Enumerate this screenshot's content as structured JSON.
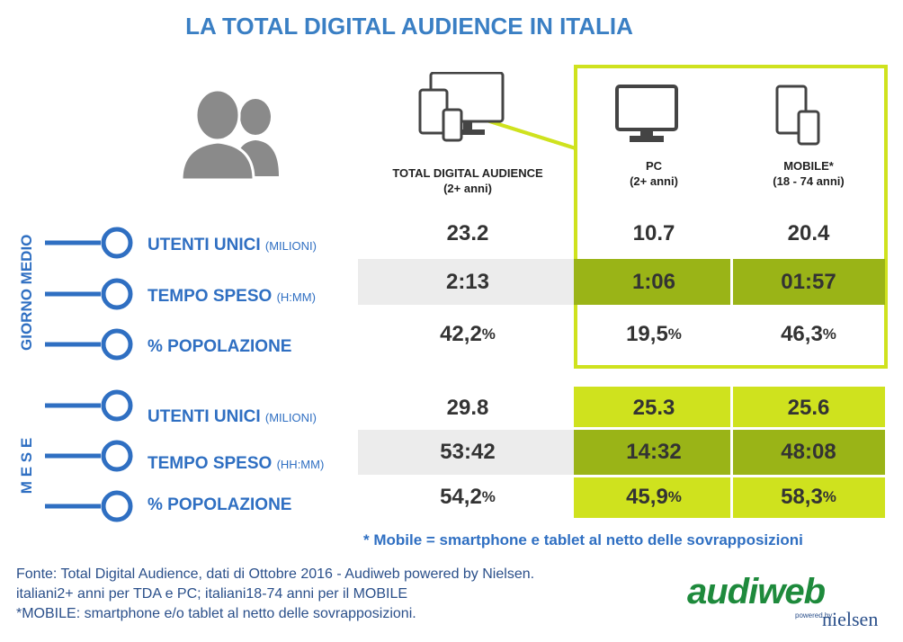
{
  "title": "LA TOTAL DIGITAL AUDIENCE IN ITALIA",
  "columns": [
    {
      "label": "TOTAL DIGITAL AUDIENCE",
      "sub": "(2+ anni)",
      "icon": "devices-icon"
    },
    {
      "label": "PC",
      "sub": "(2+ anni)",
      "icon": "monitor-icon"
    },
    {
      "label": "MOBILE*",
      "sub": "(18 - 74 anni)",
      "icon": "mobile-devices-icon"
    }
  ],
  "sections": [
    {
      "name": "GIORNO MEDIO",
      "rows": [
        {
          "label": "UTENTI UNICI",
          "sub": "(MILIONI)",
          "values": [
            "23.2",
            "10.7",
            "20.4"
          ],
          "pct": false
        },
        {
          "label": "TEMPO SPESO",
          "sub": "(H:MM)",
          "values": [
            "2:13",
            "1:06",
            "01:57"
          ],
          "pct": false
        },
        {
          "label": "% POPOLAZIONE",
          "sub": "",
          "values": [
            "42,2",
            "19,5",
            "46,3"
          ],
          "pct": true
        }
      ]
    },
    {
      "name": "M E S E",
      "rows": [
        {
          "label": "UTENTI UNICI",
          "sub": "(MILIONI)",
          "values": [
            "29.8",
            "25.3",
            "25.6"
          ],
          "pct": false
        },
        {
          "label": "TEMPO SPESO",
          "sub": "(HH:MM)",
          "values": [
            "53:42",
            "14:32",
            "48:08"
          ],
          "pct": false
        },
        {
          "label": "% POPOLAZIONE",
          "sub": "",
          "values": [
            "54,2",
            "45,9",
            "58,3"
          ],
          "pct": true
        }
      ]
    }
  ],
  "pct_symbol": "%",
  "footnote": "* Mobile = smartphone e tablet al netto delle sovrapposizioni",
  "source_lines": [
    "Fonte: Total Digital Audience, dati di Ottobre 2016 - Audiweb powered by Nielsen.",
    "italiani2+ anni per TDA e PC; italiani18-74 anni per il MOBILE",
    "*MOBILE: smartphone e/o tablet al netto delle sovrapposizioni."
  ],
  "logo": {
    "audiweb": "audiweb",
    "powered_by": "powered by",
    "nielsen": "nielsen"
  },
  "colors": {
    "title_blue": "#3a7fc4",
    "label_blue": "#2f6fc2",
    "lime": "#cfe21e",
    "dark_green": "#9ab417",
    "grey_row": "#ececec",
    "icon_grey": "#8a8a8a"
  }
}
